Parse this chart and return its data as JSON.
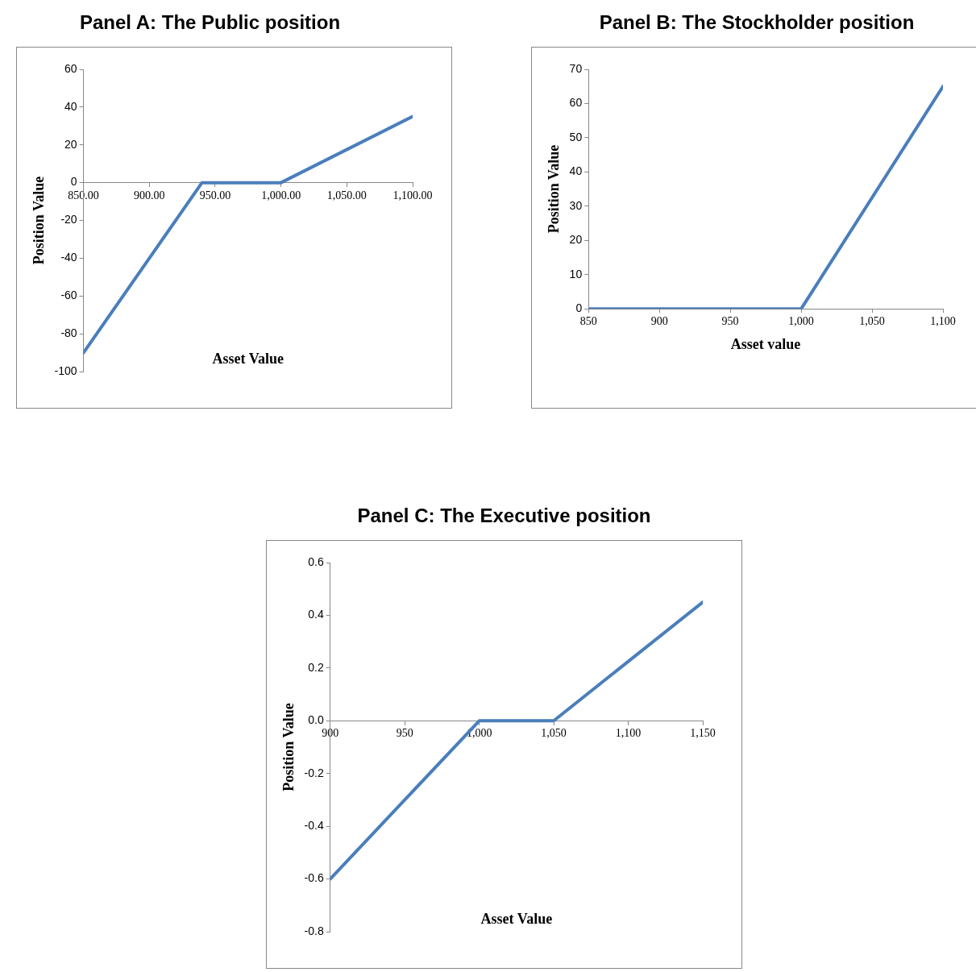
{
  "chart_data": [
    {
      "type": "line",
      "title": "Panel A: The Public position",
      "xlabel": "Asset Value",
      "ylabel": "Position Value",
      "x": [
        850,
        940,
        1000,
        1100
      ],
      "series": [
        {
          "color": "#4a7ebb",
          "values": [
            -90,
            0,
            0,
            35
          ]
        }
      ],
      "xlim": [
        850,
        1100
      ],
      "xticks": [
        {
          "value": 850,
          "label": "850.00"
        },
        {
          "value": 900,
          "label": "900.00"
        },
        {
          "value": 950,
          "label": "950.00"
        },
        {
          "value": 1000,
          "label": "1,000.00"
        },
        {
          "value": 1050,
          "label": "1,050.00"
        },
        {
          "value": 1100,
          "label": "1,100.00"
        }
      ],
      "ylim": [
        -100,
        60
      ],
      "yticks": [
        -100,
        -80,
        -60,
        -40,
        -20,
        0,
        20,
        40,
        60
      ],
      "marker": "none",
      "line_style": "solid",
      "legend": false
    },
    {
      "type": "line",
      "title": "Panel B: The Stockholder position",
      "xlabel": "Asset value",
      "ylabel": "Position Value",
      "x": [
        850,
        1000,
        1100
      ],
      "series": [
        {
          "color": "#4a7ebb",
          "values": [
            0,
            0,
            65
          ]
        }
      ],
      "xlim": [
        850,
        1100
      ],
      "xticks": [
        850,
        900,
        950,
        {
          "value": 1000,
          "label": "1,000"
        },
        {
          "value": 1050,
          "label": "1,050"
        },
        {
          "value": 1100,
          "label": "1,100"
        }
      ],
      "ylim": [
        0,
        70
      ],
      "yticks": [
        0,
        10,
        20,
        30,
        40,
        50,
        60,
        70
      ],
      "marker": "none",
      "line_style": "solid",
      "legend": false
    },
    {
      "type": "line",
      "title": "Panel C: The Executive position",
      "xlabel": "Asset Value",
      "ylabel": "Position Value",
      "x": [
        900,
        1000,
        1050,
        1150
      ],
      "series": [
        {
          "color": "#4a7ebb",
          "values": [
            -0.6,
            0,
            0,
            0.45
          ]
        }
      ],
      "xlim": [
        900,
        1150
      ],
      "xticks": [
        900,
        950,
        {
          "value": 1000,
          "label": "1,000"
        },
        {
          "value": 1050,
          "label": "1,050"
        },
        {
          "value": 1100,
          "label": "1,100"
        },
        {
          "value": 1150,
          "label": "1,150"
        }
      ],
      "ylim": [
        -0.8,
        0.6
      ],
      "yticks": [
        -0.8,
        -0.6,
        -0.4,
        -0.2,
        {
          "value": 0,
          "label": "0.0"
        },
        0.2,
        0.4,
        0.6
      ],
      "marker": "none",
      "line_style": "solid",
      "legend": false
    }
  ]
}
